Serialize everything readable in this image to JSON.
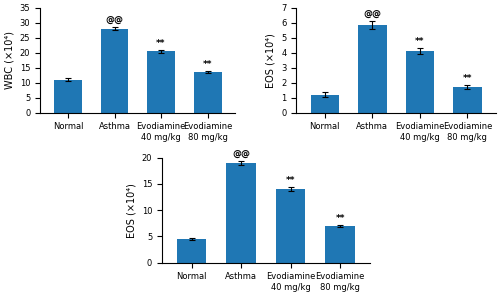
{
  "chart_data": [
    {
      "type": "bar",
      "categories": [
        "Normal",
        "Asthma",
        "Evodiamine 40 mg/kg",
        "Evodiamine 80 mg/kg"
      ],
      "values": [
        11.0,
        28.0,
        20.5,
        13.5
      ],
      "errors": [
        0.5,
        0.6,
        0.5,
        0.4
      ],
      "ylabel": "WBC (×10⁴)",
      "ylim": [
        0,
        35
      ],
      "yticks": [
        0,
        5,
        10,
        15,
        20,
        25,
        30,
        35
      ],
      "annotations": [
        null,
        "@@",
        "**",
        "**"
      ]
    },
    {
      "type": "bar",
      "categories": [
        "Normal",
        "Asthma",
        "Evodiamine 40 mg/kg",
        "Evodiamine 80 mg/kg"
      ],
      "values": [
        1.2,
        5.85,
        4.1,
        1.7
      ],
      "errors": [
        0.15,
        0.25,
        0.2,
        0.12
      ],
      "ylabel": "EOS (×10⁴)",
      "ylim": [
        0,
        7
      ],
      "yticks": [
        0,
        1,
        2,
        3,
        4,
        5,
        6,
        7
      ],
      "annotations": [
        null,
        "@@",
        "**",
        "**"
      ]
    },
    {
      "type": "bar",
      "categories": [
        "Normal",
        "Asthma",
        "Evodiamine 40 mg/kg",
        "Evodiamine 80 mg/kg"
      ],
      "values": [
        4.5,
        19.0,
        14.0,
        7.0
      ],
      "errors": [
        0.2,
        0.35,
        0.4,
        0.25
      ],
      "ylabel": "EOS (×10⁴)",
      "ylim": [
        0,
        20
      ],
      "yticks": [
        0,
        5,
        10,
        15,
        20
      ],
      "annotations": [
        null,
        "@@",
        "**",
        "**"
      ]
    }
  ]
}
